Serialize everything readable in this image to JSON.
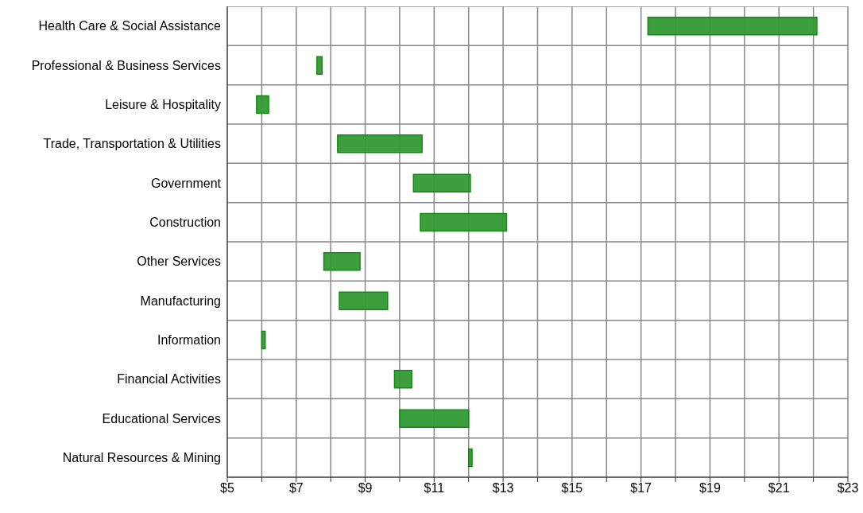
{
  "chart_data": {
    "type": "bar",
    "orientation": "horizontal",
    "categories": [
      "Health Care & Social Assistance",
      "Professional & Business Services",
      "Leisure & Hospitality",
      "Trade, Transportation & Utilities",
      "Government",
      "Construction",
      "Other Services",
      "Manufacturing",
      "Information",
      "Financial Activities",
      "Educational Services",
      "Natural Resources & Mining"
    ],
    "base": [
      17.2,
      7.6,
      5.85,
      8.2,
      10.4,
      10.6,
      7.8,
      8.25,
      6.0,
      9.85,
      10.0,
      12.0
    ],
    "values": [
      4.9,
      0.15,
      0.35,
      2.45,
      1.65,
      2.5,
      1.05,
      1.4,
      0.1,
      0.5,
      2.0,
      0.1
    ],
    "color": "#339933",
    "xlim": [
      5,
      23
    ],
    "xticks": [
      {
        "value": 5,
        "label": "$5"
      },
      {
        "value": 6,
        "label": null
      },
      {
        "value": 7,
        "label": "$7"
      },
      {
        "value": 8,
        "label": null
      },
      {
        "value": 9,
        "label": "$9"
      },
      {
        "value": 10,
        "label": null
      },
      {
        "value": 11,
        "label": "$11"
      },
      {
        "value": 12,
        "label": null
      },
      {
        "value": 13,
        "label": "$13"
      },
      {
        "value": 14,
        "label": null
      },
      {
        "value": 15,
        "label": "$15"
      },
      {
        "value": 16,
        "label": null
      },
      {
        "value": 17,
        "label": "$17"
      },
      {
        "value": 18,
        "label": null
      },
      {
        "value": 19,
        "label": "$19"
      },
      {
        "value": 20,
        "label": null
      },
      {
        "value": 21,
        "label": "$21"
      },
      {
        "value": 22,
        "label": null
      },
      {
        "value": 23,
        "label": "$23"
      }
    ],
    "grid": true
  }
}
